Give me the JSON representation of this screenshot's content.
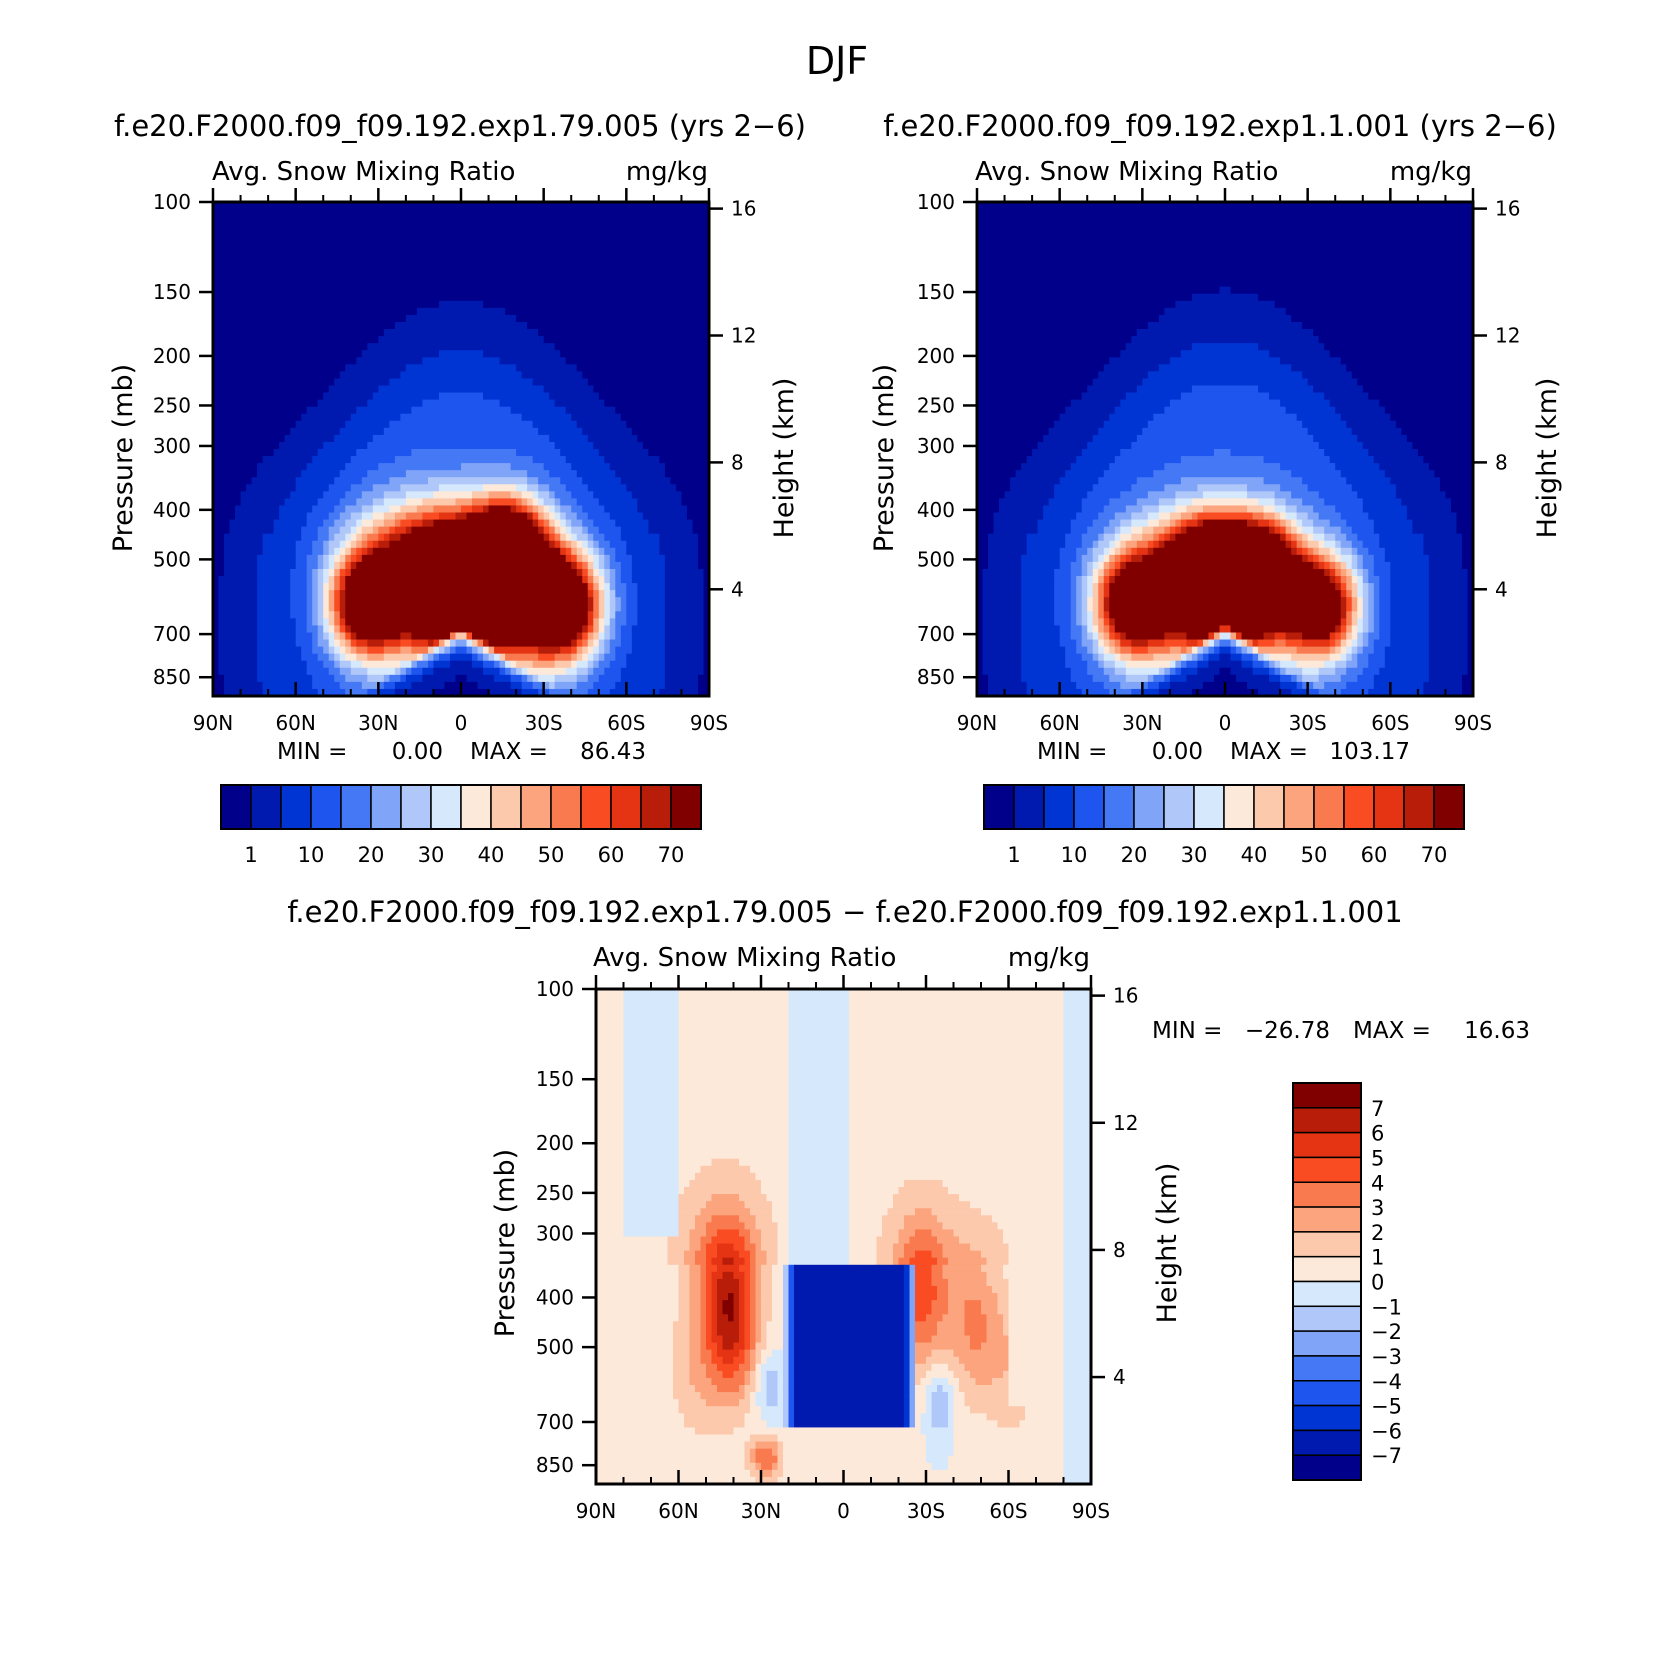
{
  "figure": {
    "title": "DJF"
  },
  "colors": {
    "abs_palette": [
      "#00008b",
      "#001aaf",
      "#0034d3",
      "#1f55ef",
      "#4578f5",
      "#80a4f7",
      "#b0c8f9",
      "#d6e8fb",
      "#fde9da",
      "#fcc9ad",
      "#fba47d",
      "#f97a4f",
      "#f94c22",
      "#e43413",
      "#b81d0a",
      "#800000"
    ],
    "diff_palette_top_to_bottom": [
      "#800000",
      "#b81d0a",
      "#e43413",
      "#f94c22",
      "#fa7a4f",
      "#fba47d",
      "#fcc9ad",
      "#fde9da",
      "#d6e8fb",
      "#b0c8f9",
      "#80a4f7",
      "#4578f5",
      "#1f55ef",
      "#0034d3",
      "#001aaf",
      "#00008b"
    ]
  },
  "chart_data": [
    {
      "type": "heatmap",
      "title": "f.e20.F2000.f09_f09.192.exp1.79.005 (yrs 2−6)",
      "subtitle_left": "Avg. Snow Mixing Ratio",
      "subtitle_right": "mg/kg",
      "xlabel": "",
      "ylabel": "Pressure (mb)",
      "ylabel_right": "Height (km)",
      "x_ticks": [
        "90N",
        "60N",
        "30N",
        "0",
        "30S",
        "60S",
        "90S"
      ],
      "y_ticks": [
        "100",
        "150",
        "200",
        "250",
        "300",
        "400",
        "500",
        "700",
        "850"
      ],
      "y_ticks_right": [
        "16",
        "12",
        "8",
        "4"
      ],
      "ylim": [
        100,
        925
      ],
      "y_scale": "log",
      "min_label": "MIN =",
      "min_value": "0.00",
      "max_label": "MAX =",
      "max_value": "86.43",
      "colorbar_labels": [
        "1",
        "10",
        "20",
        "30",
        "40",
        "50",
        "60",
        "70"
      ],
      "field": {
        "peaks": [
          {
            "lat": 34,
            "p": 620,
            "value": 70
          },
          {
            "lat": 8,
            "p": 580,
            "value": 68
          },
          {
            "lat": -10,
            "p": 560,
            "value": 72
          },
          {
            "lat": -18,
            "p": 480,
            "value": 66
          },
          {
            "lat": -37,
            "p": 620,
            "value": 70
          }
        ],
        "top_envelope_p_at_equator": 210
      }
    },
    {
      "type": "heatmap",
      "title": "f.e20.F2000.f09_f09.192.exp1.1.001 (yrs 2−6)",
      "subtitle_left": "Avg. Snow Mixing Ratio",
      "subtitle_right": "mg/kg",
      "xlabel": "",
      "ylabel": "Pressure (mb)",
      "ylabel_right": "Height (km)",
      "x_ticks": [
        "90N",
        "60N",
        "30N",
        "0",
        "30S",
        "60S",
        "90S"
      ],
      "y_ticks": [
        "100",
        "150",
        "200",
        "250",
        "300",
        "400",
        "500",
        "700",
        "850"
      ],
      "y_ticks_right": [
        "16",
        "12",
        "8",
        "4"
      ],
      "ylim": [
        100,
        925
      ],
      "y_scale": "log",
      "min_label": "MIN =",
      "min_value": "0.00",
      "max_label": "MAX =",
      "max_value": "103.17",
      "colorbar_labels": [
        "1",
        "10",
        "20",
        "30",
        "40",
        "50",
        "60",
        "70"
      ],
      "field": {
        "peaks": [
          {
            "lat": 34,
            "p": 620,
            "value": 62
          },
          {
            "lat": 6,
            "p": 540,
            "value": 78
          },
          {
            "lat": -12,
            "p": 540,
            "value": 80
          },
          {
            "lat": -35,
            "p": 620,
            "value": 72
          }
        ],
        "top_envelope_p_at_equator": 200
      }
    },
    {
      "type": "heatmap",
      "title": "f.e20.F2000.f09_f09.192.exp1.79.005 − f.e20.F2000.f09_f09.192.exp1.1.001",
      "subtitle_left": "Avg. Snow Mixing Ratio",
      "subtitle_right": "mg/kg",
      "xlabel": "",
      "ylabel": "Pressure (mb)",
      "ylabel_right": "Height (km)",
      "x_ticks": [
        "90N",
        "60N",
        "30N",
        "0",
        "30S",
        "60S",
        "90S"
      ],
      "y_ticks": [
        "100",
        "150",
        "200",
        "250",
        "300",
        "400",
        "500",
        "700",
        "850"
      ],
      "y_ticks_right": [
        "16",
        "12",
        "8",
        "4"
      ],
      "ylim": [
        100,
        925
      ],
      "y_scale": "log",
      "min_label": "MIN =",
      "min_value": "−26.78",
      "max_label": "MAX =",
      "max_value": "16.63",
      "colorbar_labels": [
        "7",
        "6",
        "5",
        "4",
        "3",
        "2",
        "1",
        "0",
        "−1",
        "−2",
        "−3",
        "−4",
        "−5",
        "−6",
        "−7"
      ],
      "field": {
        "positive_lobes": [
          {
            "lat": 41,
            "p": 450,
            "value": 6
          },
          {
            "lat": -27,
            "p": 420,
            "value": 3
          },
          {
            "lat": -48,
            "p": 450,
            "value": 3
          }
        ],
        "negative_core": {
          "lat_from": 22,
          "lat_to": -27,
          "p_from": 340,
          "p_to": 720,
          "value": -7
        }
      }
    }
  ]
}
